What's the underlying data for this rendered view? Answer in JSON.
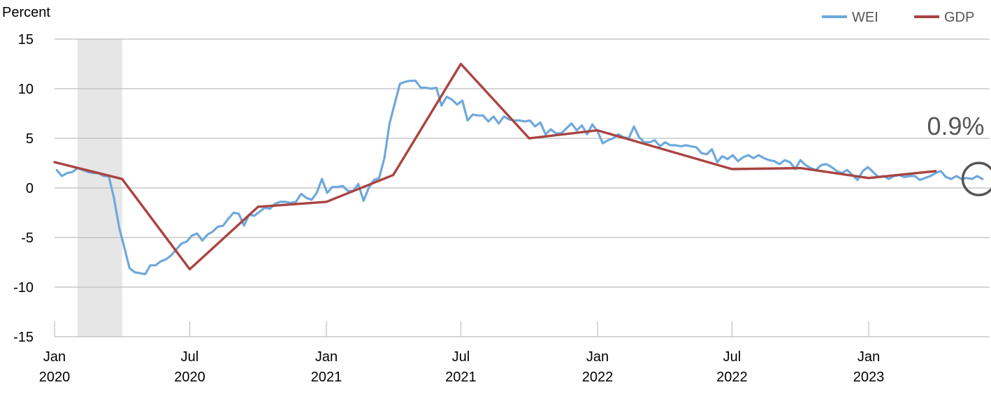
{
  "chart_data": {
    "type": "line",
    "ylabel": "Percent",
    "ylim": [
      -15,
      15
    ],
    "yticks": [
      15,
      10,
      5,
      0,
      -5,
      -10,
      -15
    ],
    "ytick_labels": [
      "15",
      "10",
      "5",
      "0",
      "-5",
      "-10",
      "-15"
    ],
    "xlim": [
      "2020-01-01",
      "2023-06-01"
    ],
    "xticks": [
      {
        "date": "2020-01-01",
        "month": "Jan",
        "year": "2020"
      },
      {
        "date": "2020-07-01",
        "month": "Jul",
        "year": "2020"
      },
      {
        "date": "2021-01-01",
        "month": "Jan",
        "year": "2021"
      },
      {
        "date": "2021-07-01",
        "month": "Jul",
        "year": "2021"
      },
      {
        "date": "2022-01-01",
        "month": "Jan",
        "year": "2022"
      },
      {
        "date": "2022-07-01",
        "month": "Jul",
        "year": "2022"
      },
      {
        "date": "2023-01-01",
        "month": "Jan",
        "year": "2023"
      }
    ],
    "grid": true,
    "legend_position": "top-right",
    "recession_shading": {
      "start": "2020-02-01",
      "end": "2020-04-01",
      "color": "#e6e6e6"
    },
    "annotation": {
      "text": "0.9%",
      "date": "2023-06-01",
      "value": 0.9
    },
    "series": [
      {
        "name": "WEI",
        "color": "#6fa8dc",
        "points": [
          [
            "2020-01-04",
            1.8
          ],
          [
            "2020-01-11",
            1.2
          ],
          [
            "2020-01-18",
            1.5
          ],
          [
            "2020-01-25",
            1.6
          ],
          [
            "2020-02-01",
            2.0
          ],
          [
            "2020-02-08",
            1.8
          ],
          [
            "2020-02-15",
            1.6
          ],
          [
            "2020-02-22",
            1.5
          ],
          [
            "2020-02-29",
            1.5
          ],
          [
            "2020-03-07",
            1.2
          ],
          [
            "2020-03-14",
            1.2
          ],
          [
            "2020-03-21",
            -1.0
          ],
          [
            "2020-03-28",
            -4.0
          ],
          [
            "2020-04-04",
            -6.0
          ],
          [
            "2020-04-11",
            -8.1
          ],
          [
            "2020-04-18",
            -8.5
          ],
          [
            "2020-04-25",
            -8.6
          ],
          [
            "2020-05-02",
            -8.7
          ],
          [
            "2020-05-09",
            -7.8
          ],
          [
            "2020-05-16",
            -7.8
          ],
          [
            "2020-05-23",
            -7.4
          ],
          [
            "2020-05-30",
            -7.2
          ],
          [
            "2020-06-06",
            -6.8
          ],
          [
            "2020-06-13",
            -6.2
          ],
          [
            "2020-06-20",
            -5.6
          ],
          [
            "2020-06-27",
            -5.4
          ],
          [
            "2020-07-04",
            -4.8
          ],
          [
            "2020-07-11",
            -4.6
          ],
          [
            "2020-07-18",
            -5.3
          ],
          [
            "2020-07-25",
            -4.7
          ],
          [
            "2020-08-01",
            -4.4
          ],
          [
            "2020-08-08",
            -3.9
          ],
          [
            "2020-08-15",
            -3.8
          ],
          [
            "2020-08-22",
            -3.1
          ],
          [
            "2020-08-29",
            -2.5
          ],
          [
            "2020-09-05",
            -2.6
          ],
          [
            "2020-09-12",
            -3.8
          ],
          [
            "2020-09-19",
            -2.7
          ],
          [
            "2020-09-26",
            -2.8
          ],
          [
            "2020-10-03",
            -2.4
          ],
          [
            "2020-10-10",
            -2.0
          ],
          [
            "2020-10-17",
            -2.1
          ],
          [
            "2020-10-24",
            -1.6
          ],
          [
            "2020-10-31",
            -1.4
          ],
          [
            "2020-11-07",
            -1.4
          ],
          [
            "2020-11-14",
            -1.5
          ],
          [
            "2020-11-21",
            -1.4
          ],
          [
            "2020-11-28",
            -0.6
          ],
          [
            "2020-12-05",
            -1.0
          ],
          [
            "2020-12-12",
            -1.2
          ],
          [
            "2020-12-19",
            -0.5
          ],
          [
            "2020-12-26",
            0.9
          ],
          [
            "2021-01-02",
            -0.5
          ],
          [
            "2021-01-09",
            0.1
          ],
          [
            "2021-01-16",
            0.1
          ],
          [
            "2021-01-23",
            0.2
          ],
          [
            "2021-01-30",
            -0.3
          ],
          [
            "2021-02-06",
            -0.3
          ],
          [
            "2021-02-13",
            0.4
          ],
          [
            "2021-02-20",
            -1.3
          ],
          [
            "2021-02-27",
            0.0
          ],
          [
            "2021-03-06",
            0.8
          ],
          [
            "2021-03-13",
            1.0
          ],
          [
            "2021-03-20",
            3.0
          ],
          [
            "2021-03-27",
            6.5
          ],
          [
            "2021-04-03",
            8.5
          ],
          [
            "2021-04-10",
            10.5
          ],
          [
            "2021-04-17",
            10.7
          ],
          [
            "2021-04-24",
            10.8
          ],
          [
            "2021-05-01",
            10.8
          ],
          [
            "2021-05-08",
            10.1
          ],
          [
            "2021-05-15",
            10.1
          ],
          [
            "2021-05-22",
            10.0
          ],
          [
            "2021-05-29",
            10.1
          ],
          [
            "2021-06-05",
            8.3
          ],
          [
            "2021-06-12",
            9.2
          ],
          [
            "2021-06-19",
            8.9
          ],
          [
            "2021-06-26",
            8.4
          ],
          [
            "2021-07-03",
            8.8
          ],
          [
            "2021-07-10",
            6.8
          ],
          [
            "2021-07-17",
            7.4
          ],
          [
            "2021-07-24",
            7.3
          ],
          [
            "2021-07-31",
            7.3
          ],
          [
            "2021-08-07",
            6.7
          ],
          [
            "2021-08-14",
            7.2
          ],
          [
            "2021-08-21",
            6.5
          ],
          [
            "2021-08-28",
            7.2
          ],
          [
            "2021-09-04",
            6.9
          ],
          [
            "2021-09-11",
            6.8
          ],
          [
            "2021-09-18",
            6.8
          ],
          [
            "2021-09-25",
            6.7
          ],
          [
            "2021-10-02",
            6.8
          ],
          [
            "2021-10-09",
            6.2
          ],
          [
            "2021-10-16",
            6.6
          ],
          [
            "2021-10-23",
            5.4
          ],
          [
            "2021-10-30",
            5.9
          ],
          [
            "2021-11-06",
            5.5
          ],
          [
            "2021-11-13",
            5.5
          ],
          [
            "2021-11-20",
            6.0
          ],
          [
            "2021-11-27",
            6.5
          ],
          [
            "2021-12-04",
            5.8
          ],
          [
            "2021-12-11",
            6.3
          ],
          [
            "2021-12-18",
            5.4
          ],
          [
            "2021-12-25",
            6.4
          ],
          [
            "2022-01-01",
            5.7
          ],
          [
            "2022-01-08",
            4.5
          ],
          [
            "2022-01-15",
            4.8
          ],
          [
            "2022-01-22",
            5.0
          ],
          [
            "2022-01-29",
            5.4
          ],
          [
            "2022-02-05",
            5.1
          ],
          [
            "2022-02-12",
            5.0
          ],
          [
            "2022-02-19",
            6.2
          ],
          [
            "2022-02-26",
            5.1
          ],
          [
            "2022-03-05",
            4.6
          ],
          [
            "2022-03-12",
            4.6
          ],
          [
            "2022-03-19",
            4.8
          ],
          [
            "2022-03-26",
            4.2
          ],
          [
            "2022-04-02",
            4.6
          ],
          [
            "2022-04-09",
            4.3
          ],
          [
            "2022-04-16",
            4.3
          ],
          [
            "2022-04-23",
            4.2
          ],
          [
            "2022-04-30",
            4.3
          ],
          [
            "2022-05-07",
            4.2
          ],
          [
            "2022-05-14",
            4.1
          ],
          [
            "2022-05-21",
            3.5
          ],
          [
            "2022-05-28",
            3.4
          ],
          [
            "2022-06-04",
            3.9
          ],
          [
            "2022-06-11",
            2.6
          ],
          [
            "2022-06-18",
            3.2
          ],
          [
            "2022-06-25",
            2.9
          ],
          [
            "2022-07-02",
            3.3
          ],
          [
            "2022-07-09",
            2.7
          ],
          [
            "2022-07-16",
            3.1
          ],
          [
            "2022-07-23",
            3.3
          ],
          [
            "2022-07-30",
            3.0
          ],
          [
            "2022-08-06",
            3.3
          ],
          [
            "2022-08-13",
            3.0
          ],
          [
            "2022-08-20",
            2.8
          ],
          [
            "2022-08-27",
            2.7
          ],
          [
            "2022-09-03",
            2.4
          ],
          [
            "2022-09-10",
            2.8
          ],
          [
            "2022-09-17",
            2.6
          ],
          [
            "2022-09-24",
            1.9
          ],
          [
            "2022-10-01",
            2.8
          ],
          [
            "2022-10-08",
            2.3
          ],
          [
            "2022-10-15",
            2.0
          ],
          [
            "2022-10-22",
            1.8
          ],
          [
            "2022-10-29",
            2.3
          ],
          [
            "2022-11-05",
            2.4
          ],
          [
            "2022-11-12",
            2.1
          ],
          [
            "2022-11-19",
            1.7
          ],
          [
            "2022-11-26",
            1.5
          ],
          [
            "2022-12-03",
            1.8
          ],
          [
            "2022-12-10",
            1.3
          ],
          [
            "2022-12-17",
            0.8
          ],
          [
            "2022-12-24",
            1.7
          ],
          [
            "2022-12-31",
            2.1
          ],
          [
            "2023-01-07",
            1.6
          ],
          [
            "2023-01-14",
            1.1
          ],
          [
            "2023-01-21",
            1.2
          ],
          [
            "2023-01-28",
            0.9
          ],
          [
            "2023-02-04",
            1.2
          ],
          [
            "2023-02-11",
            1.3
          ],
          [
            "2023-02-18",
            1.1
          ],
          [
            "2023-02-25",
            1.2
          ],
          [
            "2023-03-04",
            1.2
          ],
          [
            "2023-03-11",
            0.8
          ],
          [
            "2023-03-18",
            1.0
          ],
          [
            "2023-03-25",
            1.2
          ],
          [
            "2023-04-01",
            1.5
          ],
          [
            "2023-04-08",
            1.7
          ],
          [
            "2023-04-15",
            1.1
          ],
          [
            "2023-04-22",
            0.9
          ],
          [
            "2023-04-29",
            1.2
          ],
          [
            "2023-05-06",
            0.9
          ],
          [
            "2023-05-13",
            1.0
          ],
          [
            "2023-05-20",
            0.9
          ],
          [
            "2023-05-27",
            1.2
          ],
          [
            "2023-06-03",
            0.9
          ]
        ]
      },
      {
        "name": "GDP",
        "color": "#a94442",
        "points": [
          [
            "2020-01-01",
            2.6
          ],
          [
            "2020-04-01",
            0.9
          ],
          [
            "2020-07-01",
            -8.2
          ],
          [
            "2020-10-01",
            -1.9
          ],
          [
            "2021-01-01",
            -1.4
          ],
          [
            "2021-04-01",
            1.3
          ],
          [
            "2021-07-01",
            12.5
          ],
          [
            "2021-10-01",
            5.0
          ],
          [
            "2022-01-01",
            5.8
          ],
          [
            "2022-07-01",
            1.9
          ],
          [
            "2022-10-01",
            2.0
          ],
          [
            "2023-01-01",
            1.0
          ],
          [
            "2023-04-01",
            1.7
          ]
        ]
      }
    ]
  }
}
